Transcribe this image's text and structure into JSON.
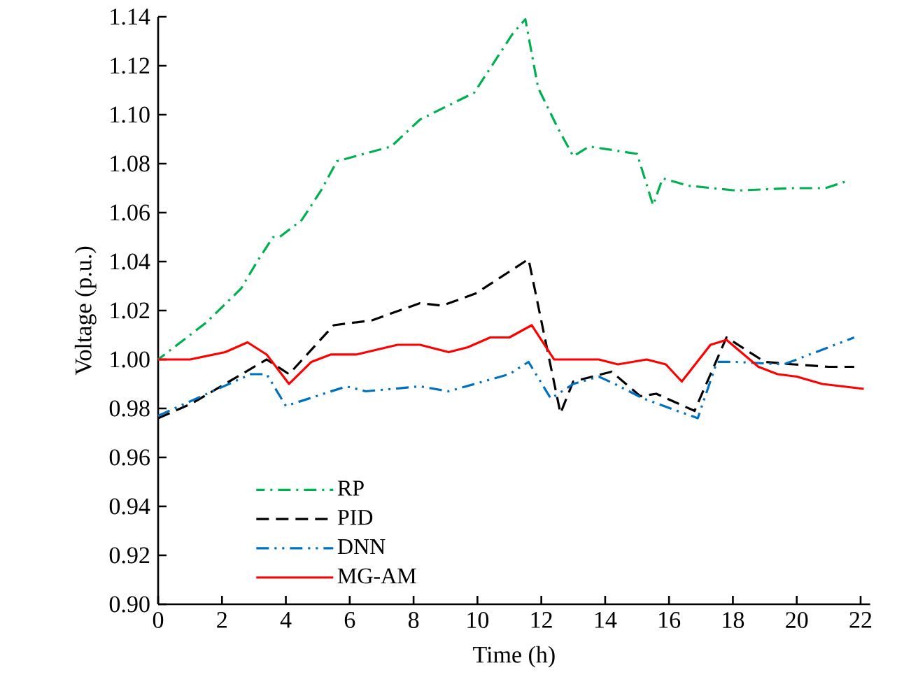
{
  "chart_data": {
    "type": "line",
    "xlabel": "Time (h)",
    "ylabel": "Voltage (p.u.)",
    "xlim": [
      0,
      22.3
    ],
    "xticks": [
      0,
      2,
      4,
      6,
      8,
      10,
      12,
      14,
      16,
      18,
      20,
      22
    ],
    "ylim": [
      0.9,
      1.14
    ],
    "yticks": [
      {
        "value": 0.9,
        "label": "0.90"
      },
      {
        "value": 0.92,
        "label": "0.92"
      },
      {
        "value": 0.94,
        "label": "0.94"
      },
      {
        "value": 0.96,
        "label": "0.96"
      },
      {
        "value": 0.98,
        "label": "0.98"
      },
      {
        "value": 1.0,
        "label": "1.00"
      },
      {
        "value": 1.02,
        "label": "1.02"
      },
      {
        "value": 1.04,
        "label": "1.04"
      },
      {
        "value": 1.06,
        "label": "1.06"
      },
      {
        "value": 1.08,
        "label": "1.08"
      },
      {
        "value": 1.1,
        "label": "1.10"
      },
      {
        "value": 1.12,
        "label": "1.12"
      },
      {
        "value": 1.14,
        "label": "1.14"
      }
    ],
    "grid": false,
    "legend": "bottom left",
    "marker": "none",
    "series": [
      {
        "name": "RP",
        "color": "#00b050",
        "line_style": "dashdot",
        "x": [
          0,
          1.5,
          2.6,
          3.1,
          3.6,
          3.8,
          4.5,
          5.1,
          5.6,
          7.3,
          8.2,
          9.9,
          11.1,
          11.5,
          11.9,
          12.5,
          13.0,
          13.5,
          15.0,
          15.5,
          15.8,
          16.6,
          18.1,
          19.9,
          20.9,
          21.6
        ],
        "values": [
          1.0,
          1.015,
          1.029,
          1.04,
          1.05,
          1.05,
          1.057,
          1.069,
          1.081,
          1.087,
          1.098,
          1.109,
          1.133,
          1.139,
          1.111,
          1.095,
          1.083,
          1.087,
          1.084,
          1.063,
          1.074,
          1.071,
          1.069,
          1.07,
          1.07,
          1.073
        ]
      },
      {
        "name": "PID",
        "color": "#000000",
        "line_style": "dashed",
        "x": [
          0,
          1.05,
          3.4,
          4.1,
          5.5,
          6.7,
          8.2,
          8.9,
          9.95,
          11.6,
          12.6,
          13.0,
          14.2,
          15.1,
          15.6,
          16.8,
          17.8,
          19.0,
          19.9,
          21.0,
          21.8
        ],
        "values": [
          0.976,
          0.982,
          1.0,
          0.994,
          1.014,
          1.016,
          1.023,
          1.022,
          1.027,
          1.041,
          0.978,
          0.991,
          0.995,
          0.985,
          0.986,
          0.979,
          1.009,
          0.999,
          0.998,
          0.997,
          0.997
        ]
      },
      {
        "name": "DNN",
        "color": "#0070c0",
        "line_style": "dashdotdot",
        "x": [
          0,
          2.9,
          3.4,
          4.0,
          5.9,
          6.5,
          8.2,
          9.1,
          11.0,
          11.6,
          12.3,
          13.0,
          13.8,
          14.3,
          15.2,
          16.9,
          17.5,
          18.1,
          19.6,
          21.0,
          21.8
        ],
        "values": [
          0.977,
          0.994,
          0.994,
          0.981,
          0.989,
          0.987,
          0.989,
          0.987,
          0.994,
          0.999,
          0.984,
          0.99,
          0.993,
          0.99,
          0.984,
          0.976,
          0.999,
          0.999,
          0.998,
          1.005,
          1.009
        ]
      },
      {
        "name": "MG-AM",
        "color": "#ff0000",
        "line_style": "solid",
        "x": [
          0,
          1.0,
          2.1,
          2.8,
          3.4,
          4.1,
          4.8,
          5.4,
          6.2,
          7.5,
          8.2,
          9.1,
          9.7,
          10.4,
          11.0,
          11.7,
          12.4,
          13.8,
          14.4,
          15.3,
          15.9,
          16.4,
          17.3,
          17.8,
          18.8,
          19.4,
          20.0,
          20.8,
          22.1
        ],
        "values": [
          1.0,
          1.0,
          1.003,
          1.007,
          1.002,
          0.99,
          0.999,
          1.002,
          1.002,
          1.006,
          1.006,
          1.003,
          1.005,
          1.009,
          1.009,
          1.014,
          1.0,
          1.0,
          0.998,
          1.0,
          0.998,
          0.991,
          1.006,
          1.008,
          0.997,
          0.994,
          0.993,
          0.99,
          0.988
        ]
      }
    ]
  }
}
